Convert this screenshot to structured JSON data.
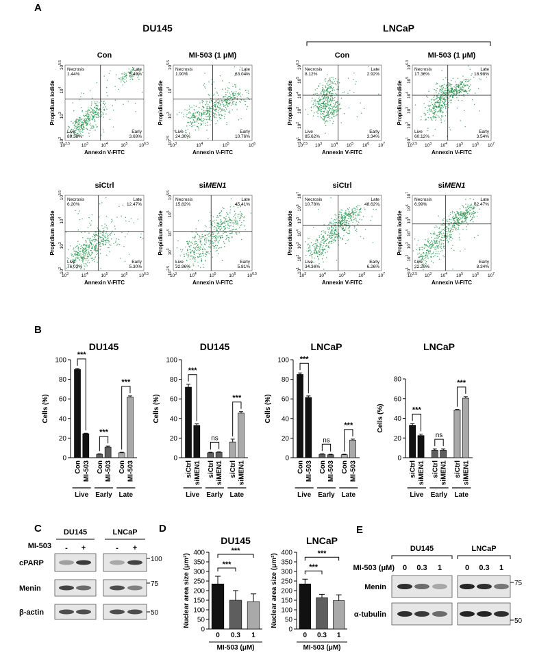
{
  "panel_a": {
    "label": "A",
    "groups": [
      "DU145",
      "LNCaP"
    ],
    "x_label": "Annexin V-FITC",
    "y_label": "Propidium iodide",
    "tick_base": "10",
    "quadrant_names": [
      "Necrosis",
      "Late",
      "Live",
      "Early"
    ],
    "plots": [
      {
        "title": [
          {
            "text": "Con"
          }
        ],
        "quadrants": [
          "1.44%",
          "5.49%",
          "89.38%",
          "3.69%"
        ],
        "xticks": [
          "2.5",
          "3",
          "4",
          "5",
          "6.5"
        ],
        "yticks": [
          "2",
          "3",
          "4",
          "5.5"
        ]
      },
      {
        "title": [
          {
            "text": "MI-503 (1 μM)"
          }
        ],
        "quadrants": [
          "1.90%",
          "63.04%",
          "24.30%",
          "10.76%"
        ],
        "xticks": [
          "3",
          "4",
          "5",
          "6"
        ],
        "yticks": [
          "2.5",
          "3",
          "4",
          "5.5"
        ]
      },
      {
        "title": [
          {
            "text": "Con"
          }
        ],
        "quadrants": [
          "8.12%",
          "2.92%",
          "85.62%",
          "3.34%"
        ],
        "xticks": [
          "2.5",
          "3",
          "4",
          "5",
          "6",
          "7"
        ],
        "yticks": [
          "1",
          "2",
          "3",
          "4",
          "5",
          "6.3"
        ]
      },
      {
        "title": [
          {
            "text": "MI-503 (1 μM)"
          }
        ],
        "quadrants": [
          "17.36%",
          "18.98%",
          "60.12%",
          "3.54%"
        ],
        "xticks": [
          "2.5",
          "3",
          "4",
          "5",
          "6",
          "7"
        ],
        "yticks": [
          "1",
          "2",
          "3",
          "4",
          "5",
          "6.3"
        ]
      },
      {
        "title": [
          {
            "text": "siCtrl"
          }
        ],
        "quadrants": [
          "6.20%",
          "12.47%",
          "76.03%",
          "5.30%"
        ],
        "xticks": [
          "3",
          "4",
          "5",
          "6",
          "6.5"
        ],
        "yticks": [
          "2",
          "3",
          "4",
          "5.5"
        ]
      },
      {
        "title": [
          {
            "text": "si"
          },
          {
            "text": "MEN1",
            "italic": true
          }
        ],
        "quadrants": [
          "15.82%",
          "45.41%",
          "32.96%",
          "5.81%"
        ],
        "xticks": [
          "3",
          "4",
          "5",
          "6",
          "6.5"
        ],
        "yticks": [
          "2.5",
          "3",
          "4",
          "5",
          "5.5"
        ]
      },
      {
        "title": [
          {
            "text": "siCtrl"
          }
        ],
        "quadrants": [
          "10.78%",
          "48.62%",
          "34.34%",
          "6.26%"
        ],
        "xticks": [
          "3",
          "4",
          "5",
          "6",
          "7"
        ],
        "yticks": [
          "1",
          "2",
          "3",
          "4",
          "5",
          "6",
          "7"
        ]
      },
      {
        "title": [
          {
            "text": "si"
          },
          {
            "text": "MEN1",
            "italic": true
          }
        ],
        "quadrants": [
          "6.99%",
          "62.47%",
          "22.20%",
          "8.34%"
        ],
        "xticks": [
          "2.5",
          "3",
          "4",
          "5",
          "6",
          "7"
        ],
        "yticks": [
          "1",
          "2",
          "3",
          "4",
          "5",
          "6",
          "7"
        ]
      }
    ]
  },
  "panel_b": {
    "label": "B"
  },
  "panel_d": {
    "label": "D"
  },
  "chart_data": [
    {
      "type": "bar",
      "title": "DU145",
      "ylabel": "Cells (%)",
      "ylim": [
        0,
        100
      ],
      "yticks": [
        0,
        20,
        40,
        60,
        80,
        100
      ],
      "categories": [
        "Live",
        "Early",
        "Late"
      ],
      "category_colors": [
        "#111111",
        "#5e5e5e",
        "#a9a9a9"
      ],
      "series": [
        {
          "name": "Con",
          "values": [
            90,
            3.5,
            5
          ],
          "errors": [
            1,
            0.5,
            0.5
          ]
        },
        {
          "name": "MI-503",
          "values": [
            24.5,
            11,
            62
          ],
          "errors": [
            0.5,
            0.8,
            1
          ]
        }
      ],
      "significance": [
        "***",
        "***",
        "***"
      ]
    },
    {
      "type": "bar",
      "title": "DU145",
      "ylabel": "Cells (%)",
      "ylim": [
        0,
        100
      ],
      "yticks": [
        0,
        20,
        40,
        60,
        80,
        100
      ],
      "categories": [
        "Live",
        "Early",
        "Late"
      ],
      "category_colors": [
        "#111111",
        "#5e5e5e",
        "#a9a9a9"
      ],
      "series": [
        {
          "name": "siCtrl",
          "values": [
            72,
            5,
            16
          ],
          "errors": [
            3,
            0.5,
            3
          ]
        },
        {
          "name": "siMEN1",
          "values": [
            33,
            5.5,
            45.5
          ],
          "errors": [
            1.5,
            0.5,
            1.5
          ]
        }
      ],
      "significance": [
        "***",
        "ns",
        "***"
      ]
    },
    {
      "type": "bar",
      "title": "LNCaP",
      "ylabel": "Cells (%)",
      "ylim": [
        0,
        100
      ],
      "yticks": [
        0,
        20,
        40,
        60,
        80,
        100
      ],
      "categories": [
        "Live",
        "Early",
        "Late"
      ],
      "category_colors": [
        "#111111",
        "#5e5e5e",
        "#a9a9a9"
      ],
      "series": [
        {
          "name": "Con",
          "values": [
            85,
            3.5,
            3
          ],
          "errors": [
            1.5,
            0.5,
            0.5
          ]
        },
        {
          "name": "MI-503",
          "values": [
            61.5,
            3,
            18
          ],
          "errors": [
            1.5,
            0.5,
            1
          ]
        }
      ],
      "significance": [
        "***",
        "ns",
        "***"
      ]
    },
    {
      "type": "bar",
      "title": "LNCaP",
      "ylabel": "Cells (%)",
      "ylim": [
        0,
        80
      ],
      "yticks": [
        0,
        20,
        40,
        60,
        80
      ],
      "categories": [
        "Live",
        "Early",
        "Late"
      ],
      "category_colors": [
        "#111111",
        "#5e5e5e",
        "#a9a9a9"
      ],
      "series": [
        {
          "name": "siCtrl",
          "values": [
            33,
            7.5,
            48.5
          ],
          "errors": [
            1.5,
            1.5,
            0.5
          ]
        },
        {
          "name": "siMEN1",
          "values": [
            22.5,
            7.5,
            60.5
          ],
          "errors": [
            1.5,
            1.5,
            1.5
          ]
        }
      ],
      "significance": [
        "***",
        "ns",
        "***"
      ]
    },
    {
      "type": "bar",
      "title": "DU145",
      "ylabel": "Nuclear area size (μm²)",
      "xlabel": "MI-503 (μM)",
      "ylim": [
        0,
        400
      ],
      "yticks": [
        0,
        50,
        100,
        150,
        200,
        250,
        300,
        350,
        400
      ],
      "categories": [
        "0",
        "0.3",
        "1"
      ],
      "colors": [
        "#111111",
        "#5e5e5e",
        "#a9a9a9"
      ],
      "values": [
        235,
        150,
        143
      ],
      "errors": [
        40,
        50,
        40
      ],
      "significance": [
        "***",
        "***"
      ]
    },
    {
      "type": "bar",
      "title": "LNCaP",
      "ylabel": "Nuclear area size (μm²)",
      "xlabel": "MI-503 (μM)",
      "ylim": [
        0,
        400
      ],
      "yticks": [
        0,
        50,
        100,
        150,
        200,
        250,
        300,
        350,
        400
      ],
      "categories": [
        "0",
        "0.3",
        "1"
      ],
      "colors": [
        "#111111",
        "#5e5e5e",
        "#a9a9a9"
      ],
      "values": [
        235,
        163,
        148
      ],
      "errors": [
        25,
        18,
        30
      ],
      "significance": [
        "***",
        "***"
      ]
    }
  ],
  "panel_c": {
    "label": "C",
    "cell_lines": [
      "DU145",
      "LNCaP"
    ],
    "treatment": "MI-503",
    "lanes": [
      "-",
      "+"
    ],
    "rows": [
      "cPARP",
      "Menin",
      "β-actin"
    ],
    "markers": [
      "100",
      "75",
      "50"
    ]
  },
  "panel_e": {
    "label": "E",
    "cell_lines": [
      "DU145",
      "LNCaP"
    ],
    "treatment": "MI-503 (μM)",
    "lanes": [
      "0",
      "0.3",
      "1"
    ],
    "rows": [
      "Menin",
      "α-tubulin"
    ],
    "markers": [
      "75",
      "50"
    ]
  }
}
